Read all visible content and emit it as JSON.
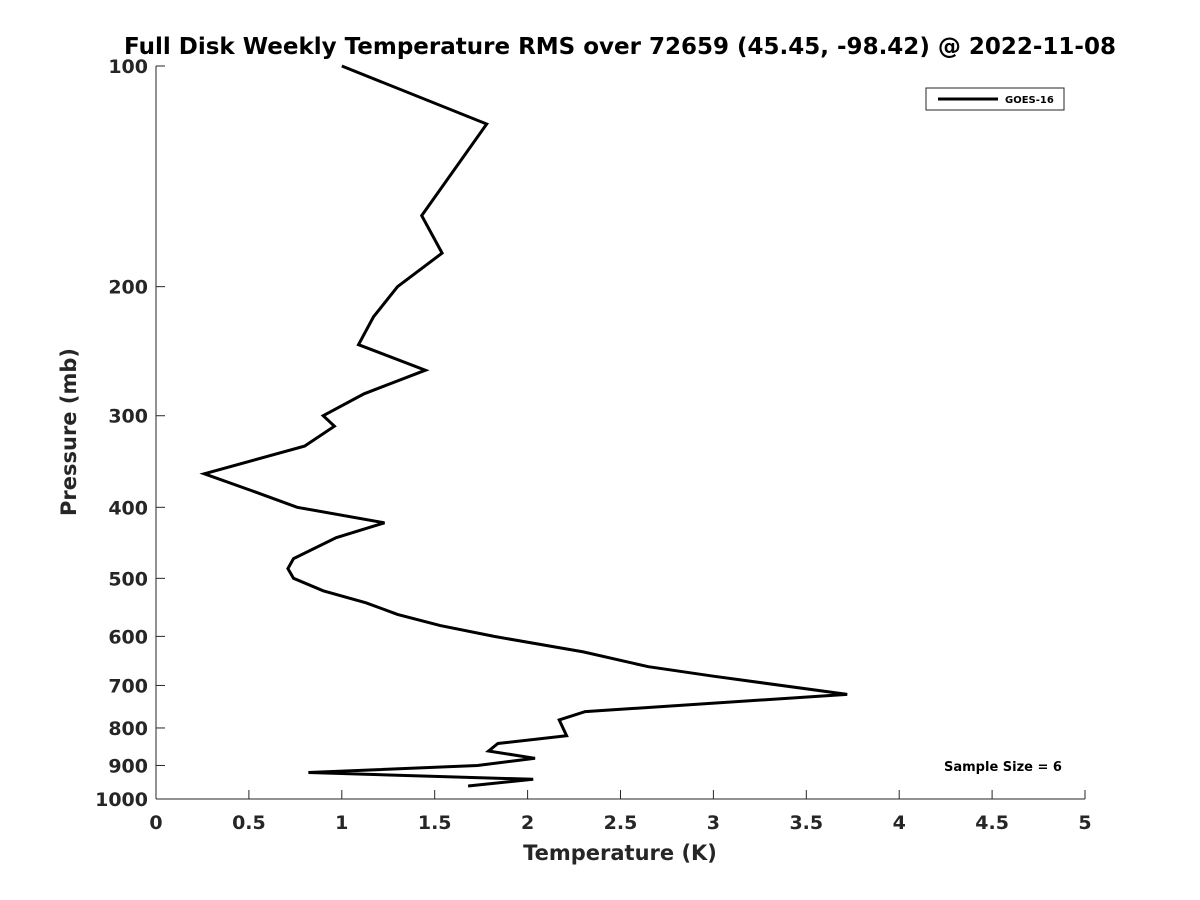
{
  "chart_data": {
    "type": "line",
    "title": "Full Disk Weekly Temperature RMS over 72659 (45.45, -98.42) @ 2022-11-08",
    "xlabel": "Temperature (K)",
    "ylabel": "Pressure (mb)",
    "xlim": [
      0,
      5
    ],
    "ylim": [
      1000,
      100
    ],
    "y_scale": "log",
    "y_reversed": true,
    "x_ticks": [
      0,
      0.5,
      1,
      1.5,
      2,
      2.5,
      3,
      3.5,
      4,
      4.5,
      5
    ],
    "x_tick_labels": [
      "0",
      "0.5",
      "1",
      "1.5",
      "2",
      "2.5",
      "3",
      "3.5",
      "4",
      "4.5",
      "5"
    ],
    "y_ticks": [
      100,
      200,
      300,
      400,
      500,
      600,
      700,
      800,
      900,
      1000
    ],
    "y_tick_labels": [
      "100",
      "200",
      "300",
      "400",
      "500",
      "600",
      "700",
      "800",
      "900",
      "1000"
    ],
    "grid": false,
    "legend_position": "top-right",
    "series": [
      {
        "name": "GOES-16",
        "color": "#000000",
        "points": [
          {
            "x": 1.0,
            "y": 100
          },
          {
            "x": 1.78,
            "y": 120
          },
          {
            "x": 1.43,
            "y": 160
          },
          {
            "x": 1.54,
            "y": 180
          },
          {
            "x": 1.3,
            "y": 200
          },
          {
            "x": 1.17,
            "y": 220
          },
          {
            "x": 1.09,
            "y": 240
          },
          {
            "x": 1.45,
            "y": 260
          },
          {
            "x": 1.12,
            "y": 280
          },
          {
            "x": 0.9,
            "y": 300
          },
          {
            "x": 0.96,
            "y": 310
          },
          {
            "x": 0.8,
            "y": 330
          },
          {
            "x": 0.26,
            "y": 360
          },
          {
            "x": 0.52,
            "y": 380
          },
          {
            "x": 0.76,
            "y": 400
          },
          {
            "x": 1.23,
            "y": 420
          },
          {
            "x": 0.97,
            "y": 440
          },
          {
            "x": 0.74,
            "y": 470
          },
          {
            "x": 0.71,
            "y": 485
          },
          {
            "x": 0.74,
            "y": 500
          },
          {
            "x": 0.9,
            "y": 520
          },
          {
            "x": 1.13,
            "y": 540
          },
          {
            "x": 1.3,
            "y": 560
          },
          {
            "x": 1.53,
            "y": 580
          },
          {
            "x": 1.82,
            "y": 600
          },
          {
            "x": 2.3,
            "y": 630
          },
          {
            "x": 2.65,
            "y": 660
          },
          {
            "x": 3.0,
            "y": 680
          },
          {
            "x": 3.72,
            "y": 720
          },
          {
            "x": 2.31,
            "y": 760
          },
          {
            "x": 2.17,
            "y": 780
          },
          {
            "x": 2.21,
            "y": 820
          },
          {
            "x": 1.84,
            "y": 840
          },
          {
            "x": 1.79,
            "y": 860
          },
          {
            "x": 2.04,
            "y": 880
          },
          {
            "x": 1.73,
            "y": 900
          },
          {
            "x": 0.82,
            "y": 920
          },
          {
            "x": 2.03,
            "y": 940
          },
          {
            "x": 1.68,
            "y": 960
          }
        ]
      }
    ],
    "annotations": [
      "Sample Size = 6"
    ]
  }
}
